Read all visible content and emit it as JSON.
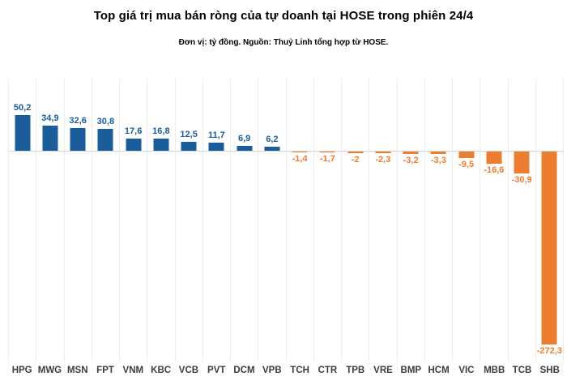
{
  "title": "Top giá trị mua bán ròng của tự doanh tại HOSE trong phiên 24/4",
  "subtitle": "Đơn vị: tỷ đồng. Nguồn: Thuỷ Linh tổng hợp từ HOSE.",
  "chart_data": {
    "type": "bar",
    "title": "Top giá trị mua bán ròng của tự doanh tại HOSE trong phiên 24/4",
    "subtitle": "Đơn vị: tỷ đồng. Nguồn: Thuỷ Linh tổng hợp từ HOSE.",
    "categories": [
      "HPG",
      "MWG",
      "MSN",
      "FPT",
      "VNM",
      "KBC",
      "VCB",
      "PVT",
      "DCM",
      "VPB",
      "TCH",
      "CTR",
      "TPB",
      "VRE",
      "BMP",
      "HCM",
      "VIC",
      "MBB",
      "TCB",
      "SHB"
    ],
    "values": [
      50.2,
      34.9,
      32.6,
      30.8,
      17.6,
      16.8,
      12.5,
      11.7,
      6.9,
      6.2,
      -1.4,
      -1.7,
      -2,
      -2.3,
      -3.2,
      -3.3,
      -9.5,
      -16.6,
      -30.9,
      -272.3
    ],
    "labels": [
      "50,2",
      "34,9",
      "32,6",
      "30,8",
      "17,6",
      "16,8",
      "12,5",
      "11,7",
      "6,9",
      "6,2",
      "-1,4",
      "-1,7",
      "-2",
      "-2,3",
      "-3,2",
      "-3,3",
      "-9,5",
      "-16,6",
      "-30,9",
      "-272,3"
    ],
    "xlabel": "",
    "ylabel": "",
    "ylim": [
      -280,
      100
    ],
    "legend": "none",
    "grid": "vertical category separators only, zero baseline shown",
    "colors": {
      "positive": "#1b5c9b",
      "negative": "#ed7d31",
      "gridline": "#ececec",
      "axis_line": "#d4d4d4",
      "category_label": "#3c3c3c",
      "title": "#000000",
      "background": "#ffffff"
    }
  }
}
